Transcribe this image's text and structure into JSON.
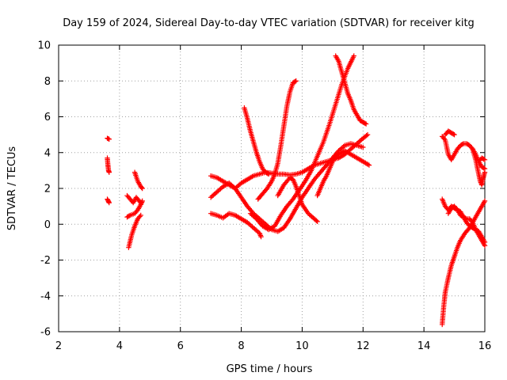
{
  "chart_data": {
    "type": "scatter",
    "title": "Day 159 of 2024, Sidereal Day-to-day VTEC variation (SDTVAR) for receiver kitg",
    "xlabel": "GPS time / hours",
    "ylabel": "SDTVAR / TECUs",
    "xlim": [
      2,
      16
    ],
    "ylim": [
      -6,
      10
    ],
    "xticks": [
      2,
      4,
      6,
      8,
      10,
      12,
      14,
      16
    ],
    "yticks": [
      -6,
      -4,
      -2,
      0,
      2,
      4,
      6,
      8,
      10
    ],
    "grid": true,
    "marker": "+",
    "color": "#ff0000",
    "tracks": [
      {
        "name": "a1",
        "points": [
          [
            3.6,
            4.8
          ],
          [
            3.66,
            4.75
          ]
        ]
      },
      {
        "name": "a2",
        "points": [
          [
            3.6,
            3.7
          ],
          [
            3.62,
            3.3
          ],
          [
            3.64,
            3.0
          ],
          [
            3.66,
            2.9
          ]
        ]
      },
      {
        "name": "a3",
        "points": [
          [
            3.6,
            1.4
          ],
          [
            3.63,
            1.3
          ],
          [
            3.66,
            1.2
          ]
        ]
      },
      {
        "name": "b1",
        "points": [
          [
            4.3,
            -1.3
          ],
          [
            4.4,
            -0.6
          ],
          [
            4.5,
            -0.1
          ],
          [
            4.6,
            0.3
          ],
          [
            4.7,
            0.5
          ]
        ]
      },
      {
        "name": "b2",
        "points": [
          [
            4.25,
            0.4
          ],
          [
            4.35,
            0.5
          ],
          [
            4.5,
            0.6
          ],
          [
            4.6,
            0.8
          ],
          [
            4.7,
            1.1
          ],
          [
            4.75,
            1.3
          ]
        ]
      },
      {
        "name": "b3",
        "points": [
          [
            4.25,
            1.6
          ],
          [
            4.35,
            1.4
          ],
          [
            4.45,
            1.2
          ],
          [
            4.55,
            1.5
          ],
          [
            4.65,
            1.3
          ],
          [
            4.7,
            1.2
          ]
        ]
      },
      {
        "name": "b4",
        "points": [
          [
            4.5,
            2.9
          ],
          [
            4.6,
            2.4
          ],
          [
            4.7,
            2.1
          ],
          [
            4.75,
            2.0
          ]
        ]
      },
      {
        "name": "c1",
        "points": [
          [
            7.0,
            2.7
          ],
          [
            7.2,
            2.6
          ],
          [
            7.4,
            2.4
          ],
          [
            7.6,
            2.2
          ],
          [
            7.8,
            2.0
          ],
          [
            8.0,
            2.3
          ],
          [
            8.2,
            2.5
          ],
          [
            8.4,
            2.7
          ],
          [
            8.6,
            2.8
          ],
          [
            8.8,
            2.9
          ],
          [
            9.0,
            2.85
          ],
          [
            9.2,
            2.8
          ],
          [
            9.4,
            2.8
          ],
          [
            9.6,
            2.75
          ],
          [
            9.8,
            2.8
          ],
          [
            10.0,
            2.9
          ],
          [
            10.2,
            3.1
          ],
          [
            10.4,
            3.3
          ],
          [
            10.6,
            3.4
          ],
          [
            10.8,
            3.5
          ],
          [
            11.0,
            3.6
          ],
          [
            11.2,
            3.7
          ],
          [
            11.4,
            3.9
          ],
          [
            11.6,
            4.2
          ],
          [
            11.8,
            4.5
          ],
          [
            12.0,
            4.8
          ],
          [
            12.15,
            5.0
          ]
        ]
      },
      {
        "name": "c2",
        "points": [
          [
            7.0,
            1.5
          ],
          [
            7.2,
            1.8
          ],
          [
            7.4,
            2.1
          ],
          [
            7.6,
            2.3
          ],
          [
            7.8,
            2.0
          ],
          [
            8.0,
            1.5
          ],
          [
            8.2,
            1.0
          ],
          [
            8.4,
            0.6
          ],
          [
            8.6,
            0.3
          ],
          [
            8.8,
            0.0
          ],
          [
            9.0,
            -0.3
          ],
          [
            9.2,
            -0.4
          ],
          [
            9.4,
            -0.2
          ],
          [
            9.6,
            0.3
          ],
          [
            9.8,
            0.9
          ],
          [
            10.0,
            1.5
          ],
          [
            10.2,
            2.0
          ],
          [
            10.4,
            2.5
          ],
          [
            10.6,
            2.9
          ],
          [
            10.8,
            3.3
          ],
          [
            11.0,
            3.7
          ],
          [
            11.2,
            4.1
          ],
          [
            11.4,
            4.4
          ],
          [
            11.6,
            4.5
          ],
          [
            11.8,
            4.4
          ],
          [
            12.0,
            4.3
          ]
        ]
      },
      {
        "name": "c3",
        "points": [
          [
            7.0,
            0.6
          ],
          [
            7.2,
            0.5
          ],
          [
            7.4,
            0.35
          ],
          [
            7.6,
            0.6
          ],
          [
            7.8,
            0.5
          ],
          [
            8.0,
            0.3
          ],
          [
            8.2,
            0.1
          ],
          [
            8.4,
            -0.2
          ],
          [
            8.6,
            -0.5
          ],
          [
            8.65,
            -0.7
          ]
        ]
      },
      {
        "name": "c4",
        "points": [
          [
            8.1,
            6.5
          ],
          [
            8.2,
            5.9
          ],
          [
            8.3,
            5.2
          ],
          [
            8.4,
            4.6
          ],
          [
            8.5,
            4.0
          ],
          [
            8.6,
            3.5
          ],
          [
            8.7,
            3.1
          ],
          [
            8.8,
            2.9
          ],
          [
            8.9,
            2.8
          ]
        ]
      },
      {
        "name": "c5",
        "points": [
          [
            8.55,
            1.4
          ],
          [
            8.7,
            1.7
          ],
          [
            8.85,
            2.0
          ],
          [
            9.0,
            2.4
          ],
          [
            9.1,
            2.8
          ],
          [
            9.2,
            3.4
          ],
          [
            9.3,
            4.4
          ],
          [
            9.4,
            5.5
          ],
          [
            9.5,
            6.6
          ],
          [
            9.6,
            7.4
          ],
          [
            9.7,
            7.9
          ],
          [
            9.8,
            8.0
          ]
        ]
      },
      {
        "name": "c6",
        "points": [
          [
            8.3,
            0.6
          ],
          [
            8.5,
            0.3
          ],
          [
            8.7,
            -0.1
          ],
          [
            8.9,
            -0.3
          ],
          [
            9.1,
            -0.1
          ],
          [
            9.3,
            0.5
          ],
          [
            9.5,
            1.0
          ],
          [
            9.7,
            1.4
          ],
          [
            9.9,
            1.9
          ],
          [
            10.1,
            2.4
          ],
          [
            10.3,
            3.0
          ],
          [
            10.5,
            3.8
          ],
          [
            10.7,
            4.6
          ],
          [
            10.9,
            5.6
          ],
          [
            11.1,
            6.7
          ],
          [
            11.3,
            7.8
          ],
          [
            11.5,
            8.7
          ],
          [
            11.7,
            9.4
          ]
        ]
      },
      {
        "name": "c7",
        "points": [
          [
            9.2,
            1.6
          ],
          [
            9.4,
            2.2
          ],
          [
            9.6,
            2.6
          ],
          [
            9.7,
            2.5
          ],
          [
            9.8,
            2.1
          ],
          [
            9.9,
            1.6
          ],
          [
            10.0,
            1.1
          ],
          [
            10.2,
            0.6
          ],
          [
            10.4,
            0.3
          ],
          [
            10.5,
            0.15
          ]
        ]
      },
      {
        "name": "c8",
        "points": [
          [
            10.5,
            1.6
          ],
          [
            10.6,
            2.0
          ],
          [
            10.7,
            2.4
          ],
          [
            10.8,
            2.7
          ],
          [
            10.9,
            3.1
          ],
          [
            11.0,
            3.5
          ],
          [
            11.1,
            3.8
          ],
          [
            11.2,
            3.9
          ],
          [
            11.4,
            4.1
          ],
          [
            11.6,
            3.9
          ],
          [
            11.8,
            3.7
          ],
          [
            12.0,
            3.5
          ],
          [
            12.2,
            3.3
          ]
        ]
      },
      {
        "name": "c9",
        "points": [
          [
            11.1,
            9.4
          ],
          [
            11.2,
            9.1
          ],
          [
            11.3,
            8.5
          ],
          [
            11.4,
            7.9
          ],
          [
            11.5,
            7.3
          ],
          [
            11.6,
            6.9
          ],
          [
            11.7,
            6.4
          ],
          [
            11.8,
            6.1
          ],
          [
            11.9,
            5.8
          ],
          [
            12.0,
            5.7
          ],
          [
            12.1,
            5.6
          ]
        ]
      },
      {
        "name": "d1",
        "points": [
          [
            14.6,
            -5.6
          ],
          [
            14.65,
            -4.6
          ],
          [
            14.7,
            -3.8
          ],
          [
            14.8,
            -3.0
          ],
          [
            14.9,
            -2.3
          ],
          [
            15.0,
            -1.8
          ],
          [
            15.1,
            -1.3
          ],
          [
            15.2,
            -0.9
          ],
          [
            15.35,
            -0.5
          ],
          [
            15.5,
            -0.2
          ],
          [
            15.6,
            0.1
          ],
          [
            15.7,
            0.4
          ],
          [
            15.8,
            0.7
          ],
          [
            15.9,
            1.0
          ],
          [
            16.0,
            1.3
          ]
        ]
      },
      {
        "name": "d2",
        "points": [
          [
            14.6,
            1.4
          ],
          [
            14.7,
            1.0
          ],
          [
            14.8,
            0.8
          ],
          [
            14.9,
            1.0
          ],
          [
            15.0,
            0.9
          ],
          [
            15.1,
            0.8
          ],
          [
            15.2,
            0.7
          ],
          [
            15.3,
            0.4
          ],
          [
            15.4,
            0.1
          ],
          [
            15.5,
            -0.1
          ],
          [
            15.6,
            -0.2
          ],
          [
            15.7,
            -0.3
          ],
          [
            15.8,
            -0.4
          ],
          [
            15.9,
            -0.7
          ],
          [
            16.0,
            -1.0
          ]
        ]
      },
      {
        "name": "d3",
        "points": [
          [
            14.6,
            4.9
          ],
          [
            14.7,
            4.7
          ],
          [
            14.8,
            3.9
          ],
          [
            14.9,
            3.6
          ],
          [
            15.0,
            3.9
          ],
          [
            15.1,
            4.2
          ],
          [
            15.2,
            4.4
          ],
          [
            15.3,
            4.5
          ],
          [
            15.4,
            4.5
          ],
          [
            15.5,
            4.4
          ],
          [
            15.6,
            4.2
          ],
          [
            15.7,
            3.9
          ],
          [
            15.8,
            3.5
          ],
          [
            15.9,
            3.2
          ],
          [
            16.0,
            3.1
          ]
        ]
      },
      {
        "name": "d4",
        "points": [
          [
            14.7,
            5.0
          ],
          [
            14.8,
            5.2
          ],
          [
            14.9,
            5.1
          ],
          [
            15.0,
            5.0
          ]
        ]
      },
      {
        "name": "d5",
        "points": [
          [
            14.8,
            0.6
          ],
          [
            14.9,
            0.9
          ],
          [
            15.0,
            1.0
          ],
          [
            15.1,
            0.8
          ],
          [
            15.2,
            0.5
          ],
          [
            15.3,
            0.4
          ],
          [
            15.4,
            0.3
          ],
          [
            15.5,
            0.3
          ],
          [
            15.6,
            0.1
          ],
          [
            15.7,
            -0.3
          ],
          [
            15.8,
            -0.6
          ],
          [
            15.9,
            -0.9
          ],
          [
            16.0,
            -1.2
          ]
        ]
      },
      {
        "name": "d6",
        "points": [
          [
            15.6,
            4.2
          ],
          [
            15.7,
            3.6
          ],
          [
            15.8,
            2.8
          ],
          [
            15.85,
            2.4
          ],
          [
            15.9,
            2.2
          ],
          [
            15.95,
            2.6
          ],
          [
            16.0,
            2.9
          ]
        ]
      },
      {
        "name": "d7",
        "points": [
          [
            15.8,
            3.5
          ],
          [
            15.9,
            3.7
          ],
          [
            16.0,
            3.6
          ]
        ]
      }
    ]
  }
}
